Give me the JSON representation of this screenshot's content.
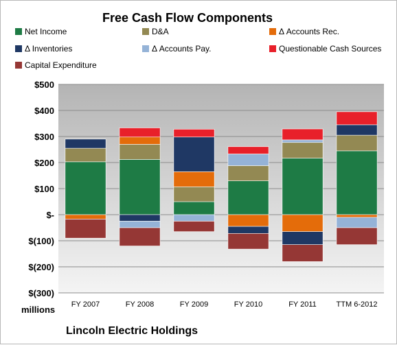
{
  "chart_data": {
    "type": "bar",
    "stacked": true,
    "title": "Free Cash Flow Components",
    "unit_label": "millions",
    "footer": "Lincoln Electric Holdings",
    "categories": [
      "FY 2007",
      "FY 2008",
      "FY 2009",
      "FY 2010",
      "FY 2011",
      "TTM 6-2012"
    ],
    "ylim": [
      -300,
      500
    ],
    "yticks": [
      500,
      400,
      300,
      200,
      100,
      0,
      -100,
      -200,
      -300
    ],
    "ytick_labels": [
      "$500",
      "$400",
      "$300",
      "$200",
      "$100",
      "$-",
      "$(100)",
      "$(200)",
      "$(300)"
    ],
    "grid": true,
    "legend_position": "top",
    "plot_background": "gradient-gray",
    "series": [
      {
        "name": "Net Income",
        "color": "#1e7b45",
        "values": [
          203,
          212,
          50,
          130,
          217,
          245
        ]
      },
      {
        "name": "D&A",
        "color": "#938953",
        "values": [
          52,
          58,
          57,
          58,
          60,
          60
        ]
      },
      {
        "name": "Δ Accounts Rec.",
        "color": "#e46c0a",
        "values": [
          -17,
          28,
          58,
          -45,
          -65,
          -10
        ]
      },
      {
        "name": "Δ Inventories",
        "color": "#1f3864",
        "values": [
          35,
          -25,
          133,
          -27,
          -50,
          40
        ]
      },
      {
        "name": "Δ Accounts Pay.",
        "color": "#95b3d7",
        "values": [
          0,
          -25,
          -25,
          45,
          10,
          -40
        ]
      },
      {
        "name": "Questionable Cash Sources",
        "color": "#e8202a",
        "values": [
          0,
          35,
          30,
          28,
          42,
          50
        ]
      },
      {
        "name": "Capital Expenditure",
        "color": "#953735",
        "values": [
          -73,
          -70,
          -40,
          -60,
          -65,
          -65
        ]
      }
    ]
  }
}
